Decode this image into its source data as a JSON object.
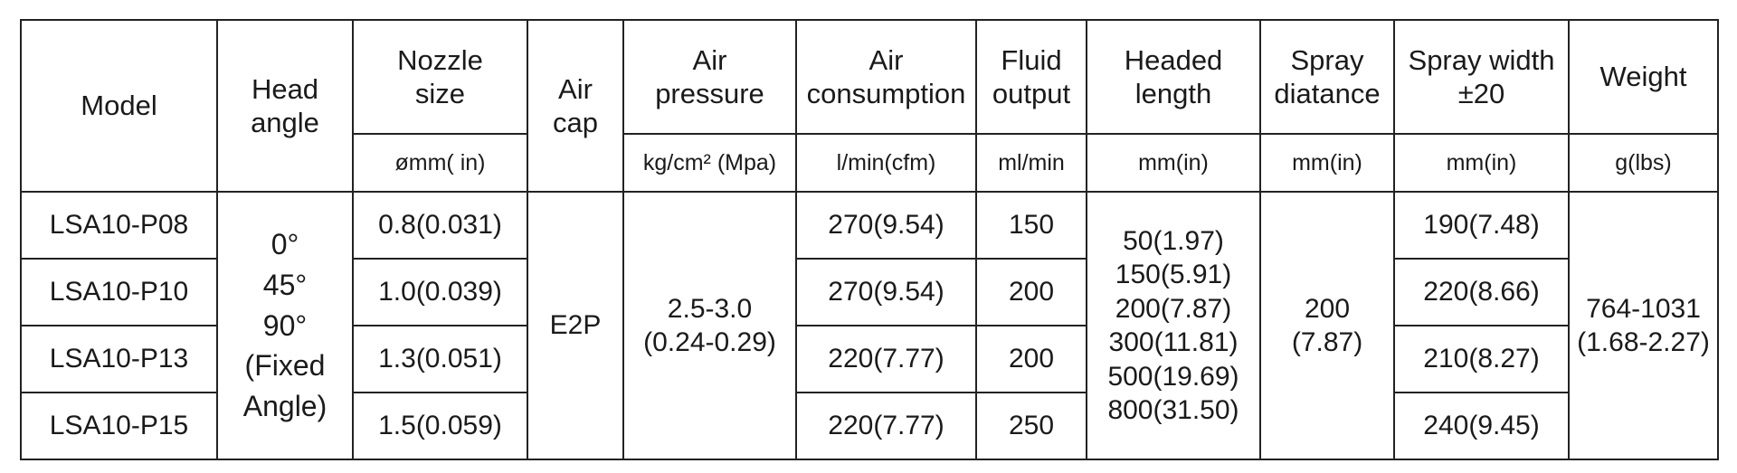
{
  "table": {
    "headers": [
      "Model",
      "Head\nangle",
      "Nozzle\nsize",
      "Air\ncap",
      "Air\npressure",
      "Air\nconsumption",
      "Fluid\noutput",
      "Headed\nlength",
      "Spray\ndiatance",
      "Spray width\n±20",
      "Weight"
    ],
    "units": [
      "ømm( in)",
      "kg/cm² (Mpa)",
      "l/min(cfm)",
      "ml/min",
      "mm(in)",
      "mm(in)",
      "mm(in)",
      "g(lbs)"
    ],
    "rows": [
      [
        "LSA10-P08",
        "0.8(0.031)",
        "270(9.54)",
        "150",
        "190(7.48)"
      ],
      [
        "LSA10-P10",
        "1.0(0.039)",
        "270(9.54)",
        "200",
        "220(8.66)"
      ],
      [
        "LSA10-P13",
        "1.3(0.051)",
        "220(7.77)",
        "200",
        "210(8.27)"
      ],
      [
        "LSA10-P15",
        "1.5(0.059)",
        "220(7.77)",
        "250",
        "240(9.45)"
      ]
    ],
    "merged": {
      "head_angle": "0°\n45°\n90°\n(Fixed\nAngle)",
      "air_cap": "E2P",
      "air_pressure": "2.5-3.0\n(0.24-0.29)",
      "headed_length": "50(1.97)\n150(5.91)\n200(7.87)\n300(11.81)\n500(19.69)\n800(31.50)",
      "spray_distance": "200\n(7.87)",
      "weight": "764-1031\n(1.68-2.27)"
    }
  }
}
